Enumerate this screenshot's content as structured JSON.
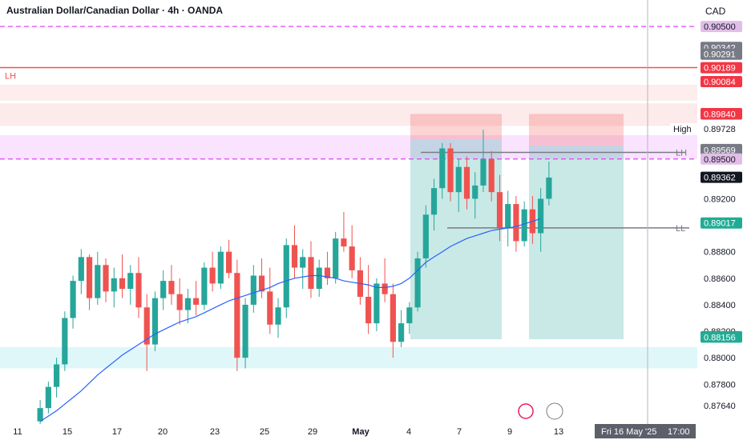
{
  "header": {
    "symbol_title": "Australian Dollar/Canadian Dollar · 4h · OANDA",
    "currency": "CAD"
  },
  "colors": {
    "up": "#26a69a",
    "down": "#ef5350",
    "ma": "#2962ff",
    "magenta": "#e040fb"
  },
  "chart_data": {
    "type": "candlestick",
    "y_range": [
      0.875,
      0.907
    ],
    "ticks_y": [
      "0.87640",
      "0.87800",
      "0.88000",
      "0.88200",
      "0.88400",
      "0.88600",
      "0.88800",
      "0.89200"
    ],
    "ticks_x": [
      "11",
      "15",
      "17",
      "20",
      "23",
      "25",
      "29",
      "May",
      "4",
      "7",
      "9",
      "13"
    ],
    "x_marker": "Fri 16 May '25",
    "x_marker_time": "17:00",
    "price_tags": [
      {
        "label": "0.90500",
        "value": 0.905,
        "style": "magenta"
      },
      {
        "label": "0.90342",
        "value": 0.90342,
        "style": "gray"
      },
      {
        "label": "0.90291",
        "value": 0.90291,
        "style": "gray"
      },
      {
        "label": "0.90189",
        "value": 0.90189,
        "style": "red"
      },
      {
        "label": "0.90084",
        "value": 0.90084,
        "style": "red"
      },
      {
        "label": "0.89843",
        "value": 0.89843,
        "style": "red"
      },
      {
        "label": "0.89840",
        "value": 0.8984,
        "style": "red"
      },
      {
        "label": "0.89728",
        "value": 0.89728,
        "style": "high",
        "prefix": "High"
      },
      {
        "label": "0.89572",
        "value": 0.89572,
        "style": "gray"
      },
      {
        "label": "0.89569",
        "value": 0.89569,
        "style": "gray"
      },
      {
        "label": "0.89500",
        "value": 0.895,
        "style": "magenta"
      },
      {
        "label": "0.89362",
        "value": 0.89362,
        "style": "dark"
      },
      {
        "label": "0.89017",
        "value": 0.89017,
        "style": "teal"
      },
      {
        "label": "0.88159",
        "value": 0.88159,
        "style": "teal"
      },
      {
        "label": "0.88156",
        "value": 0.88156,
        "style": "teal"
      }
    ],
    "annotations": [
      {
        "text": "LH",
        "value": 0.9013,
        "where": "left"
      },
      {
        "text": "LH",
        "value": 0.8955,
        "where": "right"
      },
      {
        "text": "LL",
        "value": 0.8898,
        "where": "right"
      }
    ],
    "levels": [
      {
        "value": 0.905,
        "style": "magenta-dashed"
      },
      {
        "value": 0.9019,
        "style": "red-solid"
      },
      {
        "value": 0.895,
        "style": "magenta-dashed"
      }
    ],
    "candles": [
      [
        0.8752,
        0.8768,
        0.8748,
        0.8762
      ],
      [
        0.8762,
        0.8782,
        0.8758,
        0.8778
      ],
      [
        0.8778,
        0.88,
        0.877,
        0.8795
      ],
      [
        0.8795,
        0.8835,
        0.879,
        0.883
      ],
      [
        0.883,
        0.8862,
        0.8822,
        0.8858
      ],
      [
        0.8858,
        0.8882,
        0.8848,
        0.8876
      ],
      [
        0.8876,
        0.8878,
        0.8836,
        0.8845
      ],
      [
        0.8845,
        0.888,
        0.884,
        0.887
      ],
      [
        0.887,
        0.8875,
        0.8842,
        0.885
      ],
      [
        0.885,
        0.8868,
        0.8838,
        0.886
      ],
      [
        0.886,
        0.8878,
        0.8845,
        0.8852
      ],
      [
        0.8852,
        0.887,
        0.884,
        0.8864
      ],
      [
        0.8864,
        0.8876,
        0.883,
        0.8838
      ],
      [
        0.8838,
        0.8848,
        0.879,
        0.881
      ],
      [
        0.881,
        0.885,
        0.8805,
        0.8845
      ],
      [
        0.8845,
        0.8866,
        0.8836,
        0.8858
      ],
      [
        0.8858,
        0.887,
        0.884,
        0.8848
      ],
      [
        0.8848,
        0.886,
        0.8825,
        0.8836
      ],
      [
        0.8836,
        0.8852,
        0.8826,
        0.8845
      ],
      [
        0.8845,
        0.8858,
        0.8832,
        0.884
      ],
      [
        0.884,
        0.8872,
        0.8836,
        0.8868
      ],
      [
        0.8868,
        0.888,
        0.885,
        0.8856
      ],
      [
        0.8856,
        0.8884,
        0.8852,
        0.888
      ],
      [
        0.888,
        0.8889,
        0.886,
        0.8864
      ],
      [
        0.8864,
        0.8874,
        0.879,
        0.88
      ],
      [
        0.88,
        0.8845,
        0.8792,
        0.884
      ],
      [
        0.884,
        0.887,
        0.8834,
        0.8862
      ],
      [
        0.8862,
        0.8875,
        0.8845,
        0.885
      ],
      [
        0.885,
        0.8868,
        0.8818,
        0.8825
      ],
      [
        0.8825,
        0.8845,
        0.8815,
        0.8838
      ],
      [
        0.8838,
        0.889,
        0.883,
        0.8885
      ],
      [
        0.8885,
        0.89,
        0.886,
        0.8868
      ],
      [
        0.8868,
        0.8882,
        0.8852,
        0.8876
      ],
      [
        0.8876,
        0.8888,
        0.8845,
        0.8852
      ],
      [
        0.8852,
        0.8874,
        0.8846,
        0.8868
      ],
      [
        0.8868,
        0.888,
        0.8855,
        0.886
      ],
      [
        0.886,
        0.8895,
        0.8856,
        0.889
      ],
      [
        0.889,
        0.891,
        0.888,
        0.8884
      ],
      [
        0.8884,
        0.89,
        0.886,
        0.8866
      ],
      [
        0.8866,
        0.8876,
        0.884,
        0.8846
      ],
      [
        0.8846,
        0.887,
        0.8818,
        0.8826
      ],
      [
        0.8826,
        0.886,
        0.882,
        0.8856
      ],
      [
        0.8856,
        0.8875,
        0.8842,
        0.8848
      ],
      [
        0.8848,
        0.8856,
        0.88,
        0.8812
      ],
      [
        0.8812,
        0.8836,
        0.8808,
        0.8826
      ],
      [
        0.8826,
        0.8842,
        0.8818,
        0.8838
      ],
      [
        0.8838,
        0.888,
        0.8835,
        0.8875
      ],
      [
        0.8875,
        0.8915,
        0.8868,
        0.8908
      ],
      [
        0.8908,
        0.8935,
        0.8896,
        0.8928
      ],
      [
        0.8928,
        0.8962,
        0.892,
        0.8958
      ],
      [
        0.8958,
        0.8962,
        0.8918,
        0.8925
      ],
      [
        0.8925,
        0.895,
        0.891,
        0.8944
      ],
      [
        0.8944,
        0.8952,
        0.8912,
        0.892
      ],
      [
        0.892,
        0.894,
        0.8905,
        0.893
      ],
      [
        0.893,
        0.8972,
        0.8925,
        0.895
      ],
      [
        0.895,
        0.8956,
        0.8918,
        0.8925
      ],
      [
        0.8925,
        0.8938,
        0.8888,
        0.8898
      ],
      [
        0.8898,
        0.8926,
        0.8884,
        0.8916
      ],
      [
        0.8916,
        0.8922,
        0.888,
        0.8888
      ],
      [
        0.8888,
        0.8918,
        0.8884,
        0.8912
      ],
      [
        0.8912,
        0.8922,
        0.8886,
        0.8894
      ],
      [
        0.8894,
        0.8928,
        0.888,
        0.892
      ],
      [
        0.892,
        0.8948,
        0.8915,
        0.8936
      ]
    ],
    "ma_points": [
      0.8752,
      0.8756,
      0.876,
      0.8765,
      0.877,
      0.8775,
      0.8781,
      0.8787,
      0.8792,
      0.8797,
      0.8802,
      0.8806,
      0.881,
      0.8814,
      0.8818,
      0.8821,
      0.8824,
      0.8827,
      0.8829,
      0.8831,
      0.8834,
      0.8837,
      0.884,
      0.8843,
      0.8845,
      0.8847,
      0.8849,
      0.8851,
      0.8853,
      0.8856,
      0.8858,
      0.886,
      0.8861,
      0.8862,
      0.8862,
      0.8861,
      0.886,
      0.8858,
      0.8857,
      0.8856,
      0.8855,
      0.8853,
      0.8853,
      0.8854,
      0.8856,
      0.886,
      0.8866,
      0.8872,
      0.8876,
      0.888,
      0.8884,
      0.8887,
      0.889,
      0.8892,
      0.8894,
      0.8896,
      0.8897,
      0.8898,
      0.8899,
      0.8901,
      0.8903,
      0.8905
    ]
  }
}
